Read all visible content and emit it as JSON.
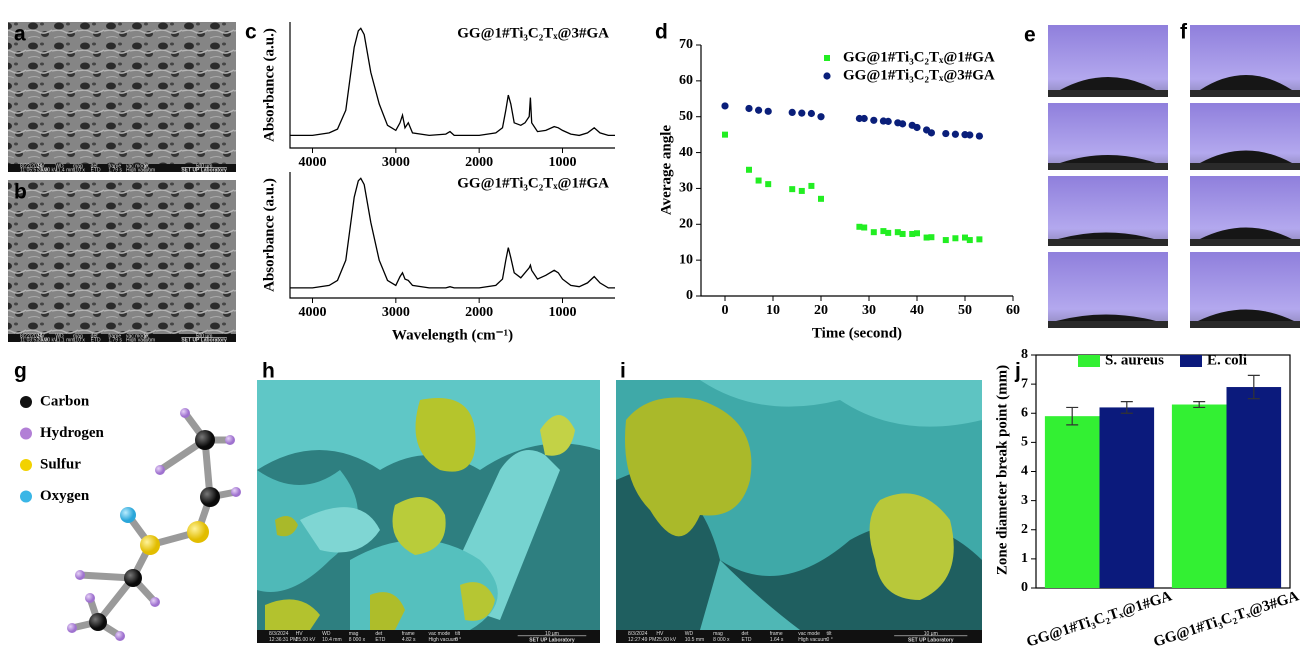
{
  "panel_labels": [
    "a",
    "b",
    "c",
    "d",
    "e",
    "f",
    "g",
    "h",
    "i",
    "j"
  ],
  "molecule_legend": [
    {
      "label": "Carbon",
      "color": "#111111"
    },
    {
      "label": "Hydrogen",
      "color": "#b27fd6"
    },
    {
      "label": "Sulfur",
      "color": "#f2d200"
    },
    {
      "label": "Oxygen",
      "color": "#3ab6e6"
    }
  ],
  "sem_bars": [
    {
      "fields": [
        [
          "8/22/2024",
          "11:05:57 AM"
        ],
        [
          "HV",
          "25.00 kV"
        ],
        [
          "WD",
          "11.4 mm"
        ],
        [
          "mag",
          "110 x"
        ],
        [
          "det",
          "ETD"
        ],
        [
          "frame",
          "1.79 s"
        ],
        [
          "vac mode",
          "High vacuum"
        ],
        [
          "tilt",
          "0 °"
        ]
      ],
      "scale": "500 μm",
      "lab": "SET UP Laboratory"
    },
    {
      "fields": [
        [
          "8/22/2024",
          "11:03:52 AM"
        ],
        [
          "HV",
          "25.00 kV"
        ],
        [
          "WD",
          "11.1 mm"
        ],
        [
          "mag",
          "110 x"
        ],
        [
          "det",
          "ETD"
        ],
        [
          "frame",
          "1.79 s"
        ],
        [
          "vac mode",
          "High vacuum"
        ],
        [
          "tilt",
          "0 °"
        ]
      ],
      "scale": "500 μm",
      "lab": "SET UP Laboratory"
    },
    {
      "fields": [
        [
          "8/3/2024",
          "12:36:31 PM"
        ],
        [
          "HV",
          "25.00 kV"
        ],
        [
          "WD",
          "10.4 mm"
        ],
        [
          "mag",
          "8 000 x"
        ],
        [
          "det",
          "ETD"
        ],
        [
          "frame",
          "4.82 s"
        ],
        [
          "vac mode",
          "High vacuum"
        ],
        [
          "tilt",
          "0 °"
        ]
      ],
      "scale": "10 μm",
      "lab": "SET UP Laboratory"
    },
    {
      "fields": [
        [
          "8/3/2024",
          "12:27:49 PM"
        ],
        [
          "HV",
          "25.00 kV"
        ],
        [
          "WD",
          "10.5 mm"
        ],
        [
          "mag",
          "8 000 x"
        ],
        [
          "det",
          "ETD"
        ],
        [
          "frame",
          "1.64 s"
        ],
        [
          "vac mode",
          "High vacuum"
        ],
        [
          "tilt",
          "0 °"
        ]
      ],
      "scale": "10 μm",
      "lab": "SET UP Laboratory"
    }
  ],
  "chart_data": [
    {
      "type": "line",
      "title": "GG@1#Ti₃C₂Tₓ@3#GA",
      "ylabel": "Absorbance (a.u.)",
      "color": "#000000",
      "x": [
        4270,
        4000,
        3800,
        3700,
        3600,
        3550,
        3500,
        3450,
        3420,
        3380,
        3300,
        3200,
        3100,
        3000,
        2950,
        2920,
        2890,
        2850,
        2800,
        2600,
        2400,
        2350,
        2300,
        2100,
        2000,
        1800,
        1720,
        1680,
        1650,
        1620,
        1580,
        1500,
        1450,
        1400,
        1385,
        1370,
        1300,
        1200,
        1100,
        1050,
        1000,
        900,
        800,
        700,
        620,
        550,
        450,
        370
      ],
      "values": [
        0.1,
        0.1,
        0.12,
        0.15,
        0.3,
        0.55,
        0.8,
        0.93,
        0.95,
        0.9,
        0.6,
        0.35,
        0.18,
        0.14,
        0.2,
        0.26,
        0.16,
        0.2,
        0.12,
        0.1,
        0.11,
        0.13,
        0.1,
        0.1,
        0.1,
        0.12,
        0.16,
        0.3,
        0.42,
        0.35,
        0.2,
        0.18,
        0.2,
        0.25,
        0.4,
        0.2,
        0.13,
        0.14,
        0.17,
        0.16,
        0.14,
        0.11,
        0.1,
        0.12,
        0.16,
        0.12,
        0.1,
        0.1
      ],
      "xlim": [
        4270,
        370
      ],
      "xticks": [
        4000,
        3000,
        2000,
        1000
      ],
      "ylim": [
        0,
        1
      ]
    },
    {
      "type": "line",
      "title": "GG@1#Ti₃C₂Tₓ@1#GA",
      "ylabel": "Absorbance (a.u.)",
      "xlabel": "Wavelength (cm⁻¹)",
      "color": "#000000",
      "x": [
        4270,
        4000,
        3800,
        3700,
        3600,
        3550,
        3500,
        3450,
        3420,
        3380,
        3300,
        3200,
        3100,
        3000,
        2950,
        2920,
        2890,
        2850,
        2800,
        2600,
        2400,
        2350,
        2300,
        2100,
        2000,
        1800,
        1720,
        1680,
        1650,
        1620,
        1580,
        1500,
        1450,
        1400,
        1385,
        1370,
        1300,
        1200,
        1100,
        1050,
        1000,
        900,
        800,
        700,
        620,
        550,
        450,
        370
      ],
      "values": [
        0.08,
        0.08,
        0.1,
        0.14,
        0.3,
        0.55,
        0.8,
        0.93,
        0.95,
        0.9,
        0.6,
        0.3,
        0.14,
        0.1,
        0.17,
        0.2,
        0.15,
        0.14,
        0.1,
        0.08,
        0.08,
        0.09,
        0.08,
        0.08,
        0.08,
        0.1,
        0.15,
        0.3,
        0.4,
        0.32,
        0.2,
        0.16,
        0.2,
        0.24,
        0.26,
        0.22,
        0.15,
        0.18,
        0.22,
        0.2,
        0.15,
        0.1,
        0.09,
        0.12,
        0.17,
        0.12,
        0.08,
        0.08
      ],
      "xlim": [
        4270,
        370
      ],
      "xticks": [
        4000,
        3000,
        2000,
        1000
      ],
      "ylim": [
        0,
        1
      ]
    },
    {
      "type": "scatter",
      "xlabel": "Time (second)",
      "ylabel": "Average angle",
      "xlim": [
        -5,
        60
      ],
      "xticks": [
        0,
        10,
        20,
        30,
        40,
        50,
        60
      ],
      "ylim": [
        0,
        70
      ],
      "yticks": [
        0,
        10,
        20,
        30,
        40,
        50,
        60,
        70
      ],
      "legend": "upper right",
      "series": [
        {
          "name": "GG@1#Ti₃C₂Tₓ@1#GA",
          "color": "#22ee22",
          "marker": "square",
          "x": [
            0,
            5,
            7,
            9,
            14,
            16,
            18,
            20,
            28,
            29,
            31,
            33,
            34,
            36,
            37,
            39,
            40,
            42,
            43,
            46,
            48,
            50,
            51,
            53
          ],
          "values": [
            45,
            35.2,
            32.2,
            31.2,
            29.8,
            29.3,
            30.7,
            27.1,
            19.3,
            19.1,
            17.8,
            18.1,
            17.6,
            17.8,
            17.3,
            17.3,
            17.5,
            16.3,
            16.4,
            15.6,
            16.1,
            16.3,
            15.6,
            15.8
          ]
        },
        {
          "name": "GG@1#Ti₃C₂Tₓ@3#GA",
          "color": "#0a1f7a",
          "marker": "circle",
          "x": [
            0,
            5,
            7,
            9,
            14,
            16,
            18,
            20,
            28,
            29,
            31,
            33,
            34,
            36,
            37,
            39,
            40,
            42,
            43,
            46,
            48,
            50,
            51,
            53
          ],
          "values": [
            53,
            52.3,
            51.8,
            51.5,
            51.2,
            51,
            50.9,
            50,
            49.5,
            49.5,
            49,
            48.8,
            48.7,
            48.3,
            48,
            47.6,
            47,
            46.3,
            45.5,
            45.3,
            45.1,
            45,
            44.9,
            44.6
          ]
        }
      ]
    },
    {
      "type": "bar",
      "ylabel": "Zone diameter break point (mm)",
      "categories": [
        "GG@1#Ti₃C₂Tₓ@1#GA",
        "GG@1#Ti₃C₂Tₓ@3#GA"
      ],
      "ylim": [
        0,
        8
      ],
      "yticks": [
        0,
        1,
        2,
        3,
        4,
        5,
        6,
        7,
        8
      ],
      "legend": "top",
      "series": [
        {
          "name": "S. aureus",
          "color": "#33f033",
          "values": [
            5.9,
            6.3
          ],
          "errors": [
            0.3,
            0.1
          ]
        },
        {
          "name": "E. coli",
          "color": "#0b1a7c",
          "values": [
            6.2,
            6.9
          ],
          "errors": [
            0.2,
            0.4
          ]
        }
      ]
    }
  ]
}
